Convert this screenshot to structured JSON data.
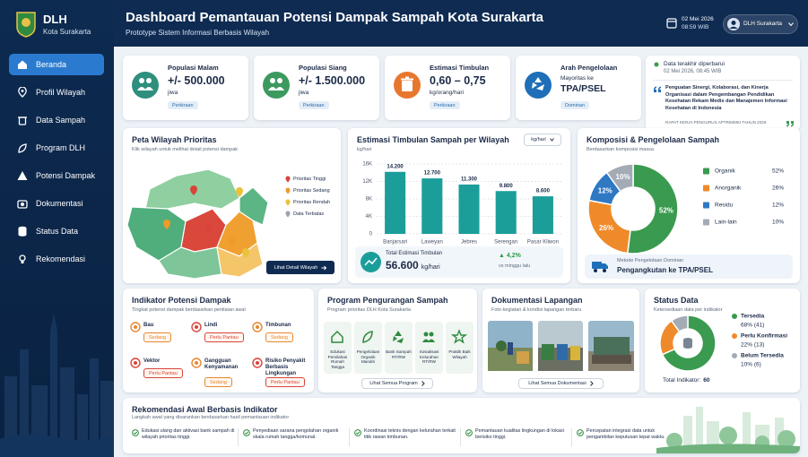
{
  "sidebar": {
    "brand": "DLH",
    "sub": "Kota Surakarta",
    "menu": [
      "Beranda",
      "Profil Wilayah",
      "Data Sampah",
      "Program DLH",
      "Potensi Dampak",
      "Dokumentasi",
      "Status Data",
      "Rekomendasi"
    ]
  },
  "header": {
    "title": "Dashboard Pemantauan Potensi Dampak Sampah Kota Surakarta",
    "subtitle": "Prototype Sistem Informasi Berbasis Wilayah",
    "date": "02 Mei 2026",
    "time": "08:59 WIB",
    "user": "DLH Surakarta"
  },
  "kpis": [
    {
      "label": "Populasi Malam",
      "value": "+/- 500.000",
      "unit": "jiwa",
      "tag": "Perkiraan",
      "color": "#2e8f7d"
    },
    {
      "label": "Populasi Siang",
      "value": "+/- 1.500.000",
      "unit": "jiwa",
      "tag": "Perkiraan",
      "color": "#3d9a5f"
    },
    {
      "label": "Estimasi Timbulan",
      "value": "0,60 – 0,75",
      "unit": "kg/orang/hari",
      "tag": "Perkiraan",
      "color": "#e8772e"
    },
    {
      "label": "Arah Pengelolaan",
      "note": "Mayoritas ke",
      "value": "TPA/PSEL",
      "tag": "Dominan",
      "color": "#1e6fb8"
    }
  ],
  "update": {
    "label": "Data terakhir diperbarui",
    "date": "02 Mei 2026, 08:45 WIB",
    "quote": "Penguatan Sinergi, Kolaborasi, dan Kinerja Organisasi dalam Pengembangan Pendidikan Kesehatan Rekam Medis dan Manajemen Informasi Kesehatan di Indonesia",
    "source": "RAPAT KERJA PENGURUS APTRIMMKI TAHUN 2026"
  },
  "map": {
    "title": "Peta Wilayah Prioritas",
    "subtitle": "Klik wilayah untuk melihat detail potensi dampak",
    "legend": [
      {
        "name": "Prioritas Tinggi",
        "color": "#d9443a"
      },
      {
        "name": "Prioritas Sedang",
        "color": "#ef9a2a"
      },
      {
        "name": "Prioritas Rendah",
        "color": "#e9c23a"
      },
      {
        "name": "Data Terbatas",
        "color": "#9aa3ad"
      }
    ],
    "button": "Lihat Detail Wilayah"
  },
  "chart_data": [
    {
      "type": "bar",
      "title": "Estimasi Timbulan Sampah per Wilayah",
      "ylabel": "kg/hari",
      "dropdown": "kg/hari",
      "categories": [
        "Banjarsari",
        "Laweyan",
        "Jebres",
        "Serengan",
        "Pasar Kliwon"
      ],
      "values": [
        14200,
        12700,
        11300,
        9800,
        8600
      ],
      "value_labels": [
        "14.200",
        "12.700",
        "11.300",
        "9.800",
        "8.600"
      ],
      "color": "#1b9e9a",
      "ylim": [
        0,
        16000
      ],
      "yticks": [
        0,
        {
          "value": 4000,
          "label": "4K"
        },
        {
          "value": 8000,
          "label": "8K"
        },
        {
          "value": 12000,
          "label": "12K"
        },
        {
          "value": 16000,
          "label": "16K"
        }
      ],
      "grid": true,
      "summary": {
        "label": "Total Estimasi Timbulan",
        "value": "56.600",
        "unit": "kg/hari",
        "change": "▲ 4,2%",
        "change_note": "vs minggu lalu"
      }
    },
    {
      "type": "pie",
      "title": "Komposisi & Pengelolaan Sampah",
      "subtitle": "Berdasarkan komposisi massa",
      "categories": [
        "Organik",
        "Anorganik",
        "Residu",
        "Lain-lain"
      ],
      "values": [
        52,
        26,
        12,
        10
      ],
      "value_labels": [
        "52%",
        "26%",
        "12%",
        "10%"
      ],
      "colors": [
        "#3a9a4f",
        "#ef8a2a",
        "#2f78c4",
        "#a3abb5"
      ],
      "footer": {
        "label": "Metode Pengelolaan Dominan",
        "value": "Pengangkutan ke TPA/PSEL"
      }
    },
    {
      "type": "pie",
      "title": "Status Data",
      "subtitle": "Ketersediaan data per indikator",
      "categories": [
        "Tersedia",
        "Perlu Konfirmasi",
        "Belum Tersedia"
      ],
      "values": [
        41,
        13,
        6
      ],
      "value_labels": [
        "68% (41)",
        "22% (13)",
        "10% (6)"
      ],
      "colors": [
        "#3a9a4f",
        "#ef8a2a",
        "#a3abb5"
      ],
      "total_label": "Total Indikator:",
      "total": 60
    }
  ],
  "indicators": {
    "title": "Indikator Potensi Dampak",
    "subtitle": "Tingkat potensi dampak berdasarkan penilaian awal",
    "items": [
      {
        "name": "Bau",
        "status": "Sedang",
        "color": "#e8872e"
      },
      {
        "name": "Lindi",
        "status": "Perlu Pantau",
        "color": "#d9443a"
      },
      {
        "name": "Timbunan",
        "status": "Sedang",
        "color": "#e8872e"
      },
      {
        "name": "Vektor",
        "status": "Perlu Pantau",
        "color": "#d9443a"
      },
      {
        "name": "Gangguan Kenyamanan",
        "status": "Sedang",
        "color": "#e8872e"
      },
      {
        "name": "Risiko Penyakit Berbasis Lingkungan",
        "status": "Perlu Pantau",
        "color": "#d9443a"
      }
    ]
  },
  "programs": {
    "title": "Program Pengurangan Sampah",
    "subtitle": "Program prioritas DLH Kota Surakarta",
    "items": [
      "Edukasi Pemilahan Rumah Tangga",
      "Pengelolaan Organik Mandiri",
      "Bank Sampah RT/RW",
      "Sosialisasi Kelurahan RT/RW",
      "Praktik Baik Wilayah"
    ],
    "button": "Lihat Semua Program"
  },
  "documentation": {
    "title": "Dokumentasi Lapangan",
    "subtitle": "Foto kegiatan & kondisi lapangan terbaru",
    "button": "Lihat Semua Dokumentasi"
  },
  "recommendations": {
    "title": "Rekomendasi Awal Berbasis Indikator",
    "subtitle": "Langkah awal yang disarankan berdasarkan hasil pemantauan indikator",
    "items": [
      "Edukasi ulang dan aktivasi bank sampah di wilayah prioritas tinggi.",
      "Penyediaan sarana pengolahan organik skala rumah tangga/komunal.",
      "Koordinasi teknis dengan kelurahan terkait titik rawan timbunan.",
      "Pemantauan kualitas lingkungan di lokasi berisiko tinggi.",
      "Percepatan integrasi data untuk pengambilan keputusan tepat waktu."
    ]
  }
}
